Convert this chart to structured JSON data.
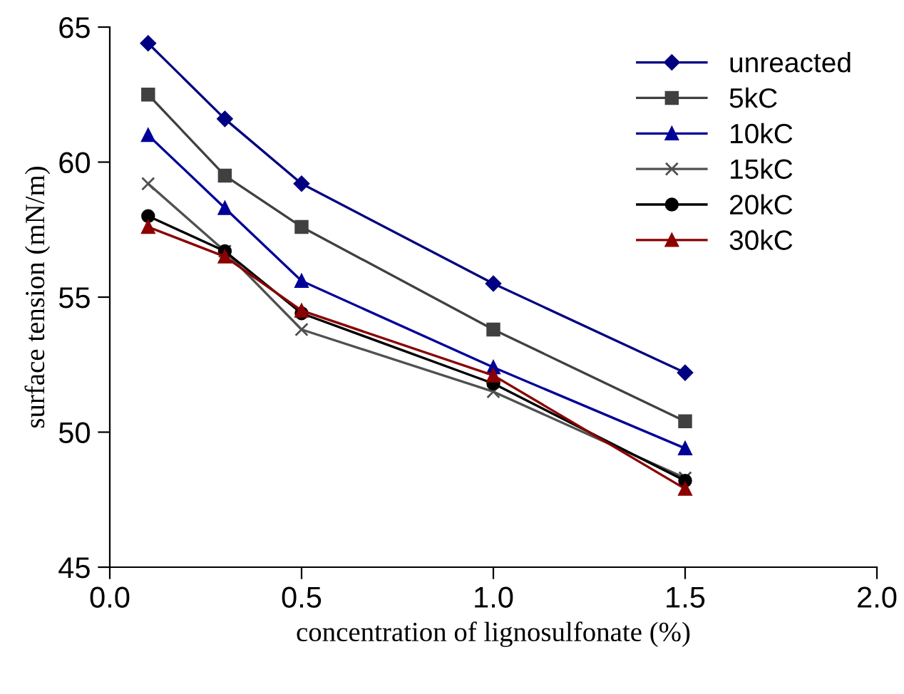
{
  "chart_data": {
    "type": "line",
    "xlabel": "concentration of lignosulfonate (%)",
    "ylabel": "surface tension (mN/m)",
    "x": [
      0.1,
      0.3,
      0.5,
      1.0,
      1.5
    ],
    "series": [
      {
        "name": "unreacted",
        "color": "#000080",
        "marker": "diamond",
        "values": [
          64.4,
          61.6,
          59.2,
          55.5,
          52.2
        ]
      },
      {
        "name": "5kC",
        "color": "#404040",
        "marker": "square",
        "values": [
          62.5,
          59.5,
          57.6,
          53.8,
          50.4
        ]
      },
      {
        "name": "10kC",
        "color": "#000099",
        "marker": "triangle",
        "values": [
          61.0,
          58.3,
          55.6,
          52.4,
          49.4
        ]
      },
      {
        "name": "15kC",
        "color": "#505050",
        "marker": "cross",
        "values": [
          59.2,
          56.7,
          53.8,
          51.5,
          48.3
        ]
      },
      {
        "name": "20kC",
        "color": "#000000",
        "marker": "circle",
        "values": [
          58.0,
          56.7,
          54.4,
          51.8,
          48.2
        ]
      },
      {
        "name": "30kC",
        "color": "#8b0000",
        "marker": "triangle",
        "values": [
          57.6,
          56.5,
          54.5,
          52.1,
          47.9
        ]
      }
    ],
    "xlim": [
      0.0,
      2.0
    ],
    "xticks": [
      {
        "value": 0.0,
        "label": "0.0"
      },
      0.5,
      {
        "value": 1.0,
        "label": "1.0"
      },
      1.5,
      {
        "value": 2.0,
        "label": "2.0"
      }
    ],
    "ylim": [
      45,
      65
    ],
    "yticks": [
      45,
      50,
      55,
      60,
      65
    ],
    "grid": false,
    "legend": "top right",
    "line_style": "solid"
  }
}
